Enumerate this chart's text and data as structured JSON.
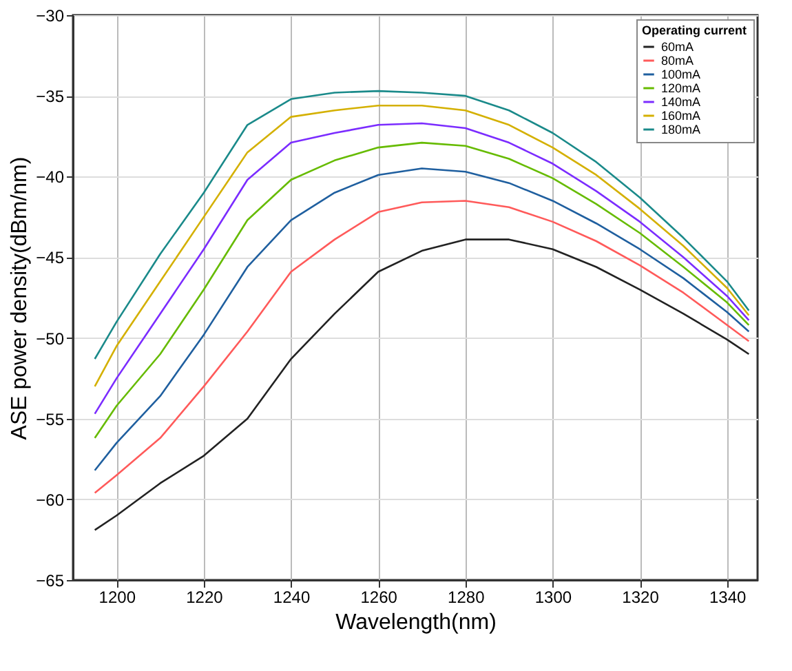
{
  "chart_data": {
    "type": "line",
    "xlabel": "Wavelength(nm)",
    "ylabel": "ASE power density(dBm/nm)",
    "legend_title": "Operating current",
    "legend": "top right",
    "grid": true,
    "marker": "none",
    "line_style": "solid",
    "xlim": [
      1190,
      1347
    ],
    "xticks": [
      1200,
      1220,
      1240,
      1260,
      1280,
      1300,
      1320,
      1340
    ],
    "ylim": [
      -65,
      -30
    ],
    "yticks": [
      -65,
      -60,
      -55,
      -50,
      -45,
      -40,
      -35,
      -30
    ],
    "x": [
      1195,
      1200,
      1210,
      1220,
      1230,
      1240,
      1250,
      1260,
      1270,
      1280,
      1290,
      1300,
      1310,
      1320,
      1330,
      1340,
      1345
    ],
    "series": [
      {
        "name": "60mA",
        "color": "#222222",
        "values": [
          -61.9,
          -61.0,
          -59.0,
          -57.3,
          -55.0,
          -51.3,
          -48.5,
          -45.9,
          -44.6,
          -43.9,
          -43.9,
          -44.5,
          -45.6,
          -47.0,
          -48.5,
          -50.1,
          -51.0
        ]
      },
      {
        "name": "80mA",
        "color": "#ff5a5a",
        "values": [
          -59.6,
          -58.5,
          -56.2,
          -53.0,
          -49.6,
          -45.9,
          -43.9,
          -42.2,
          -41.6,
          -41.5,
          -41.9,
          -42.8,
          -44.0,
          -45.5,
          -47.2,
          -49.2,
          -50.2
        ]
      },
      {
        "name": "100mA",
        "color": "#1f5f9f",
        "values": [
          -58.2,
          -56.5,
          -53.6,
          -49.8,
          -45.6,
          -42.7,
          -41.0,
          -39.9,
          -39.5,
          -39.7,
          -40.4,
          -41.5,
          -42.9,
          -44.5,
          -46.3,
          -48.4,
          -49.6
        ]
      },
      {
        "name": "120mA",
        "color": "#66bb00",
        "values": [
          -56.2,
          -54.2,
          -51.0,
          -47.0,
          -42.7,
          -40.2,
          -39.0,
          -38.2,
          -37.9,
          -38.1,
          -38.9,
          -40.1,
          -41.7,
          -43.5,
          -45.6,
          -47.8,
          -49.2
        ]
      },
      {
        "name": "140mA",
        "color": "#7b2cff",
        "values": [
          -54.7,
          -52.5,
          -48.5,
          -44.5,
          -40.2,
          -37.9,
          -37.3,
          -36.8,
          -36.7,
          -37.0,
          -37.9,
          -39.2,
          -40.9,
          -42.8,
          -45.0,
          -47.4,
          -48.9
        ]
      },
      {
        "name": "160mA",
        "color": "#d4b000",
        "values": [
          -53.0,
          -50.5,
          -46.5,
          -42.5,
          -38.5,
          -36.3,
          -35.9,
          -35.6,
          -35.6,
          -35.9,
          -36.8,
          -38.2,
          -39.9,
          -42.0,
          -44.3,
          -46.9,
          -48.6
        ]
      },
      {
        "name": "180mA",
        "color": "#1a8a8a",
        "values": [
          -51.3,
          -49.0,
          -44.8,
          -41.0,
          -36.8,
          -35.2,
          -34.8,
          -34.7,
          -34.8,
          -35.0,
          -35.9,
          -37.3,
          -39.1,
          -41.3,
          -43.8,
          -46.5,
          -48.3
        ]
      }
    ]
  }
}
